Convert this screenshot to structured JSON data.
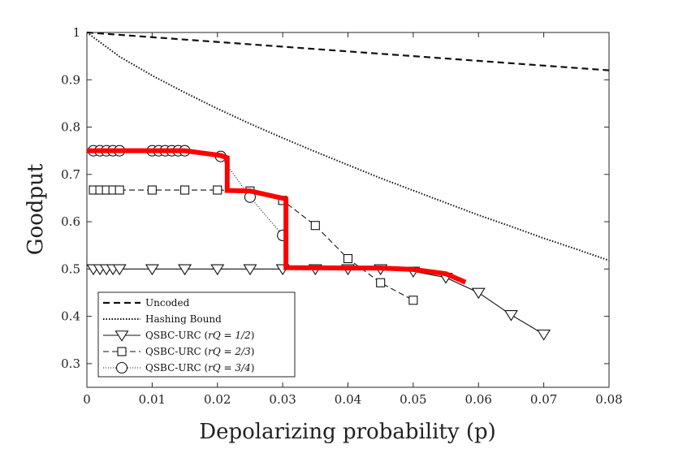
{
  "chart_data": {
    "type": "line",
    "xlabel": "Depolarizing probability (p)",
    "ylabel": "Goodput",
    "xlim": [
      0,
      0.08
    ],
    "ylim": [
      0.25,
      1.0
    ],
    "xticks": [
      "0",
      "0.01",
      "0.02",
      "0.03",
      "0.04",
      "0.05",
      "0.06",
      "0.07",
      "0.08"
    ],
    "yticks": [
      "0.3",
      "0.4",
      "0.5",
      "0.6",
      "0.7",
      "0.8",
      "0.9",
      "1"
    ],
    "grid": false,
    "legend_position": "bottom-left",
    "series": [
      {
        "name": "Uncoded",
        "style": "dashed",
        "marker": "none",
        "x": [
          0,
          0.08
        ],
        "y": [
          1.0,
          0.92
        ]
      },
      {
        "name": "Hashing Bound",
        "style": "dotted",
        "marker": "none",
        "x": [
          0,
          0.005,
          0.01,
          0.015,
          0.02,
          0.025,
          0.03,
          0.035,
          0.04,
          0.045,
          0.05,
          0.055,
          0.06,
          0.065,
          0.07,
          0.075,
          0.08
        ],
        "y": [
          1.0,
          0.949,
          0.909,
          0.873,
          0.839,
          0.807,
          0.777,
          0.748,
          0.72,
          0.692,
          0.666,
          0.64,
          0.614,
          0.59,
          0.565,
          0.542,
          0.518
        ]
      },
      {
        "name": "QSBC-URC (r_Q = 1/2)",
        "legend_prefix": "QSBC-URC (",
        "legend_math": "rQ = 1/2",
        "legend_suffix": ")",
        "style": "solid",
        "marker": "triangle-down",
        "x": [
          0.001,
          0.002,
          0.003,
          0.004,
          0.005,
          0.01,
          0.015,
          0.02,
          0.025,
          0.03,
          0.035,
          0.04,
          0.045,
          0.05,
          0.055,
          0.06,
          0.065,
          0.07
        ],
        "y": [
          0.5,
          0.5,
          0.5,
          0.5,
          0.5,
          0.5,
          0.5,
          0.5,
          0.5,
          0.5,
          0.5,
          0.5,
          0.5,
          0.495,
          0.482,
          0.45,
          0.403,
          0.362
        ]
      },
      {
        "name": "QSBC-URC (r_Q = 2/3)",
        "legend_prefix": "QSBC-URC (",
        "legend_math": "rQ = 2/3",
        "legend_suffix": ")",
        "style": "dashed",
        "marker": "square",
        "x": [
          0.001,
          0.002,
          0.003,
          0.004,
          0.005,
          0.01,
          0.015,
          0.02,
          0.025,
          0.03,
          0.035,
          0.04,
          0.045,
          0.05
        ],
        "y": [
          0.667,
          0.667,
          0.667,
          0.667,
          0.667,
          0.667,
          0.667,
          0.667,
          0.665,
          0.645,
          0.592,
          0.522,
          0.471,
          0.434
        ]
      },
      {
        "name": "QSBC-URC (r_Q = 3/4)",
        "legend_prefix": "QSBC-URC (",
        "legend_math": "rQ = 3/4",
        "legend_suffix": ")",
        "style": "dotted",
        "marker": "circle",
        "x": [
          0.001,
          0.002,
          0.003,
          0.004,
          0.005,
          0.01,
          0.011,
          0.012,
          0.013,
          0.014,
          0.015,
          0.0205,
          0.025,
          0.03
        ],
        "y": [
          0.75,
          0.75,
          0.75,
          0.75,
          0.75,
          0.75,
          0.75,
          0.75,
          0.75,
          0.75,
          0.75,
          0.738,
          0.652,
          0.571
        ]
      },
      {
        "name": "Best envelope",
        "style": "thick-red",
        "color": "#ff0000",
        "marker": "none",
        "in_legend": false,
        "x": [
          0,
          0.015,
          0.0205,
          0.0215,
          0.0215,
          0.025,
          0.0305,
          0.0305,
          0.04,
          0.045,
          0.05,
          0.055,
          0.058
        ],
        "y": [
          0.75,
          0.75,
          0.74,
          0.735,
          0.666,
          0.665,
          0.648,
          0.503,
          0.502,
          0.502,
          0.499,
          0.49,
          0.472
        ]
      }
    ]
  }
}
